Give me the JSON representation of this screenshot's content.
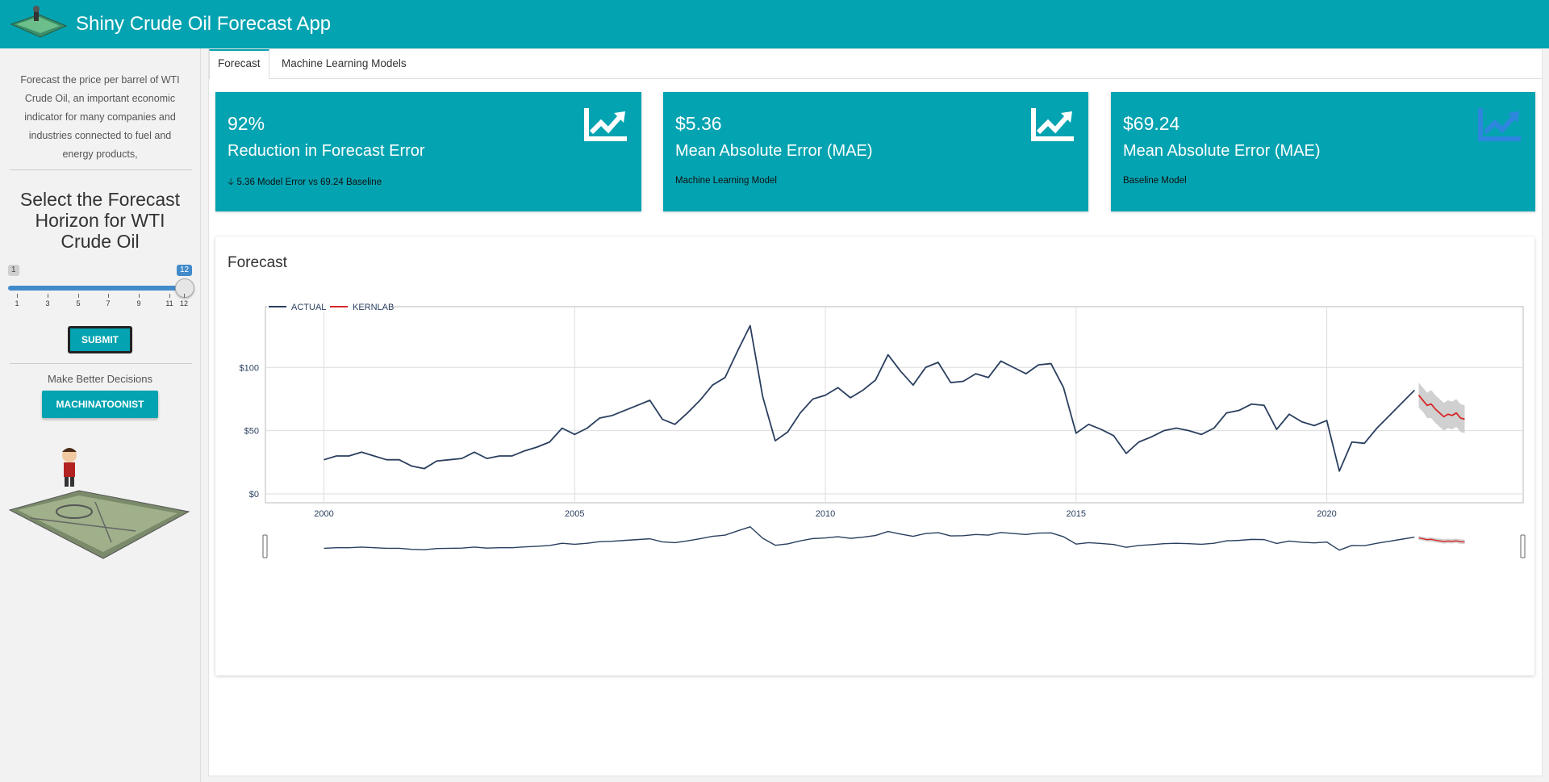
{
  "header": {
    "title": "Shiny Crude Oil Forecast App"
  },
  "sidebar": {
    "description": "Forecast the price per barrel of WTI Crude Oil, an important economic indicator for many companies and industries connected to fuel and energy products,",
    "heading": "Select the Forecast Horizon for WTI Crude Oil",
    "slider": {
      "min_label": "1",
      "max_label": "12",
      "value": 12,
      "min": 1,
      "max": 12,
      "tick_labels": [
        "1",
        "3",
        "5",
        "7",
        "9",
        "11",
        "12"
      ]
    },
    "submit_label": "SUBMIT",
    "tagline": "Make Better Decisions",
    "brand_button": "MACHINATOONIST"
  },
  "tabs": [
    {
      "label": "Forecast",
      "active": true
    },
    {
      "label": "Machine Learning Models",
      "active": false
    }
  ],
  "value_boxes": [
    {
      "value": "92%",
      "subtitle": "Reduction in Forecast Error",
      "note": "5.36 Model Error vs 69.24 Baseline",
      "note_icon": "arrow-down-icon",
      "icon": "chart-line-icon",
      "icon_color": "#ffffff"
    },
    {
      "value": "$5.36",
      "subtitle": "Mean Absolute Error (MAE)",
      "note": "Machine Learning Model",
      "icon": "chart-line-icon",
      "icon_color": "#ffffff"
    },
    {
      "value": "$69.24",
      "subtitle": "Mean Absolute Error (MAE)",
      "note": "Baseline Model",
      "icon": "chart-line-icon",
      "icon_color": "#2e86de"
    }
  ],
  "colors": {
    "accent": "#03a3b1",
    "actual_line": "#2a3f5f",
    "forecast_line": "#d62728",
    "band": "#c8c8c8"
  },
  "forecast_card": {
    "title": "Forecast"
  },
  "chart_data": {
    "type": "line",
    "title": "",
    "xlabel": "",
    "ylabel": "",
    "x_ticks": [
      "2000",
      "2005",
      "2010",
      "2015",
      "2020"
    ],
    "y_ticks": [
      "$0",
      "$50",
      "$100"
    ],
    "xlim": [
      "1998-11",
      "2023-12"
    ],
    "ylim": [
      -7,
      148
    ],
    "grid": true,
    "legend_position": "top-left",
    "series": [
      {
        "name": "ACTUAL",
        "x": [
          "2000-01",
          "2000-04",
          "2000-07",
          "2000-10",
          "2001-01",
          "2001-04",
          "2001-07",
          "2001-10",
          "2002-01",
          "2002-04",
          "2002-07",
          "2002-10",
          "2003-01",
          "2003-04",
          "2003-07",
          "2003-10",
          "2004-01",
          "2004-04",
          "2004-07",
          "2004-10",
          "2005-01",
          "2005-04",
          "2005-07",
          "2005-10",
          "2006-01",
          "2006-04",
          "2006-07",
          "2006-10",
          "2007-01",
          "2007-04",
          "2007-07",
          "2007-10",
          "2008-01",
          "2008-04",
          "2008-07",
          "2008-10",
          "2009-01",
          "2009-04",
          "2009-07",
          "2009-10",
          "2010-01",
          "2010-04",
          "2010-07",
          "2010-10",
          "2011-01",
          "2011-04",
          "2011-07",
          "2011-10",
          "2012-01",
          "2012-04",
          "2012-07",
          "2012-10",
          "2013-01",
          "2013-04",
          "2013-07",
          "2013-10",
          "2014-01",
          "2014-04",
          "2014-07",
          "2014-10",
          "2015-01",
          "2015-04",
          "2015-07",
          "2015-10",
          "2016-01",
          "2016-04",
          "2016-07",
          "2016-10",
          "2017-01",
          "2017-04",
          "2017-07",
          "2017-10",
          "2018-01",
          "2018-04",
          "2018-07",
          "2018-10",
          "2019-01",
          "2019-04",
          "2019-07",
          "2019-10",
          "2020-01",
          "2020-04",
          "2020-07",
          "2020-10",
          "2021-01",
          "2021-04",
          "2021-07",
          "2021-10"
        ],
        "y": [
          27,
          30,
          30,
          33,
          30,
          27,
          27,
          22,
          20,
          26,
          27,
          28,
          33,
          28,
          30,
          30,
          34,
          37,
          41,
          52,
          47,
          52,
          60,
          62,
          66,
          70,
          74,
          59,
          55,
          64,
          74,
          86,
          92,
          113,
          133,
          77,
          42,
          49,
          64,
          75,
          78,
          84,
          76,
          82,
          90,
          110,
          97,
          86,
          100,
          104,
          88,
          89,
          95,
          92,
          105,
          100,
          95,
          102,
          103,
          84,
          48,
          55,
          51,
          46,
          32,
          41,
          45,
          50,
          52,
          50,
          47,
          52,
          64,
          66,
          71,
          70,
          51,
          63,
          57,
          54,
          58,
          18,
          41,
          40,
          52,
          62,
          72,
          82
        ]
      },
      {
        "name": "KERNLAB",
        "x": [
          "2021-11",
          "2021-12",
          "2022-01",
          "2022-02",
          "2022-03",
          "2022-04",
          "2022-05",
          "2022-06",
          "2022-07",
          "2022-08",
          "2022-09",
          "2022-10"
        ],
        "y": [
          78,
          74,
          70,
          71,
          67,
          64,
          61,
          63,
          62,
          64,
          60,
          59
        ],
        "lower": [
          68,
          65,
          60,
          60,
          56,
          53,
          50,
          52,
          51,
          53,
          49,
          48
        ],
        "upper": [
          88,
          84,
          80,
          82,
          78,
          75,
          72,
          74,
          73,
          75,
          71,
          70
        ]
      }
    ]
  }
}
